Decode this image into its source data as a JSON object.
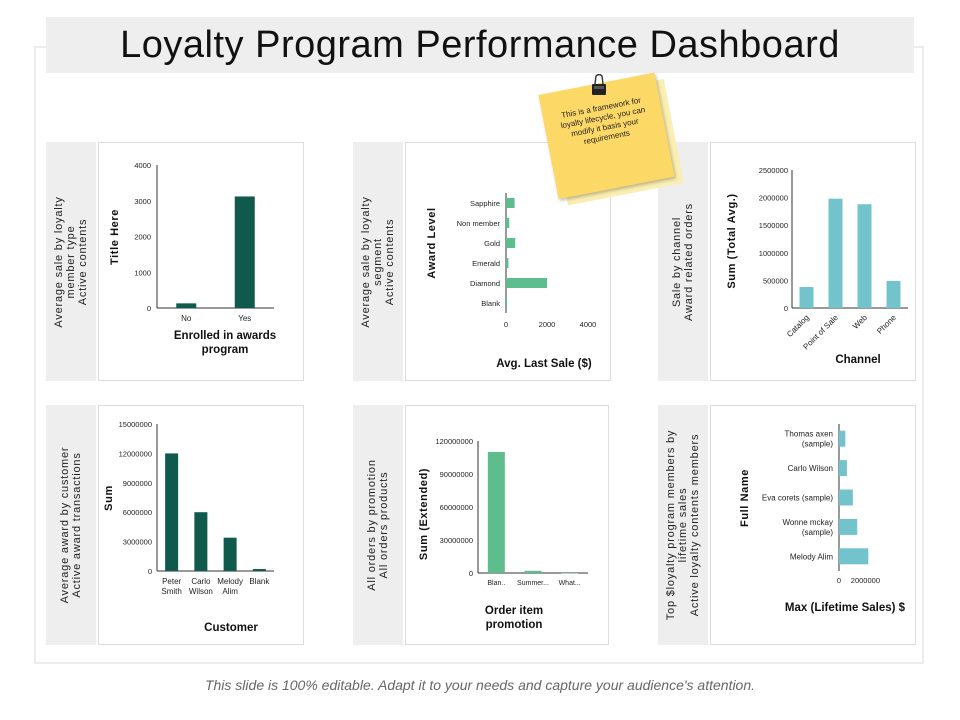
{
  "title": "Loyalty Program Performance Dashboard",
  "footer": "This slide is 100% editable. Adapt it to your needs and capture your audience's attention.",
  "sticky_note": "This is a framework for loyalty lifecycle, you can modify it basis your requirements",
  "colors": {
    "dark_green": "#0f5a4c",
    "mid_green": "#5dbd8c",
    "teal": "#73c3cc",
    "note_yellow": "#fcd967"
  },
  "panels": [
    {
      "side_lines": [
        "Average sale by loyalty",
        "member type",
        "Active contents"
      ]
    },
    {
      "side_lines": [
        "Average sale by loyalty",
        "segment",
        "Active contents"
      ]
    },
    {
      "side_lines": [
        "Sale by channel",
        "Award related orders"
      ]
    },
    {
      "side_lines": [
        "Average award by customer",
        "Active award transactions"
      ]
    },
    {
      "side_lines": [
        "All orders by promotion",
        "All orders products"
      ]
    },
    {
      "side_lines": [
        "Top $loyalty program members by",
        "lifetime sales",
        "Active loyalty contents members"
      ]
    }
  ],
  "chart_data": [
    {
      "type": "bar",
      "title": "",
      "ylabel": "Title Here",
      "xlabel_lines": [
        "Enrolled in awards",
        "program"
      ],
      "categories": [
        "No",
        "Yes"
      ],
      "category_labels": [
        [
          "No"
        ],
        [
          "Yes"
        ]
      ],
      "values": [
        130,
        3120
      ],
      "ylim": [
        0,
        4000
      ],
      "yticks": [
        0,
        1000,
        2000,
        3000,
        4000
      ],
      "ytick_labels": [
        "0",
        "1000",
        "2000",
        "3000",
        "4000"
      ],
      "color": "#0f5a4c"
    },
    {
      "type": "bar",
      "orientation": "horizontal",
      "ylabel": "Award Level",
      "xlabel_lines": [
        "Avg. Last Sale ($)"
      ],
      "categories": [
        "Sapphire",
        "Non member",
        "Gold",
        "Emerald",
        "Diamond",
        "Blank"
      ],
      "values": [
        420,
        160,
        450,
        120,
        2000,
        0
      ],
      "xlim": [
        0,
        4000
      ],
      "xticks": [
        0,
        2000,
        4000
      ],
      "xtick_labels": [
        "0",
        "2000",
        "4000"
      ],
      "color": "#5dbd8c"
    },
    {
      "type": "bar",
      "ylabel": "Sum (Total Avg.)",
      "xlabel_lines": [
        "Channel"
      ],
      "categories": [
        "Catalog",
        "Point of Sale",
        "Web",
        "Phone"
      ],
      "values": [
        380000,
        1980000,
        1880000,
        490000
      ],
      "ylim": [
        0,
        2500000
      ],
      "yticks": [
        0,
        500000,
        1000000,
        1500000,
        2000000,
        2500000
      ],
      "ytick_labels": [
        "0",
        "500000",
        "1000000",
        "1500000",
        "2000000",
        "2500000"
      ],
      "color": "#73c3cc"
    },
    {
      "type": "bar",
      "ylabel": "Sum",
      "xlabel_lines": [
        "Customer"
      ],
      "categories": [
        "Peter Smith",
        "Carlo Wilson",
        "Melody Alim",
        "Blank"
      ],
      "category_labels": [
        [
          "Peter",
          "Smith"
        ],
        [
          "Carlo",
          "Wilson"
        ],
        [
          "Melody",
          "Alim"
        ],
        [
          "Blank"
        ]
      ],
      "values": [
        12000000,
        6000000,
        3400000,
        200000
      ],
      "ylim": [
        0,
        15000000
      ],
      "yticks": [
        0,
        3000000,
        6000000,
        9000000,
        12000000,
        15000000
      ],
      "ytick_labels": [
        "0",
        "3000000",
        "6000000",
        "9000000",
        "12000000",
        "15000000"
      ],
      "color": "#0f5a4c"
    },
    {
      "type": "bar",
      "ylabel": "Sum (Extended)",
      "xlabel_lines": [
        "Order item",
        "promotion"
      ],
      "categories": [
        "Blan..",
        "Summer...",
        "What..."
      ],
      "category_labels": [
        [
          "Blan.."
        ],
        [
          "Summer..."
        ],
        [
          "What..."
        ]
      ],
      "values": [
        110000000,
        2000000,
        0
      ],
      "ylim": [
        0,
        120000000
      ],
      "yticks": [
        0,
        30000000,
        60000000,
        90000000,
        120000000
      ],
      "ytick_labels": [
        "0",
        "30000000",
        "60000000",
        "90000000",
        "120000000"
      ],
      "color": "#5dbd8c"
    },
    {
      "type": "bar",
      "orientation": "horizontal",
      "ylabel": "Full Name",
      "xlabel_lines": [
        "Max (Lifetime Sales) $"
      ],
      "categories": [
        "Thomas axen (sample)",
        "Carlo Wilson",
        "Eva corets (sample)",
        "Wonne mckay (sample)",
        "Melody Alim"
      ],
      "category_labels": [
        [
          "Thomas axen",
          "(sample)"
        ],
        [
          "Carlo Wilson"
        ],
        [
          "Eva corets (sample)"
        ],
        [
          "Wonne mckay",
          "(sample)"
        ],
        [
          "Melody Alim"
        ]
      ],
      "values": [
        480000,
        600000,
        1050000,
        1380000,
        2220000
      ],
      "xlim": [
        0,
        5000000
      ],
      "xticks": [
        0,
        2000000
      ],
      "xtick_labels": [
        "0",
        "2000000"
      ],
      "color": "#73c3cc"
    }
  ]
}
